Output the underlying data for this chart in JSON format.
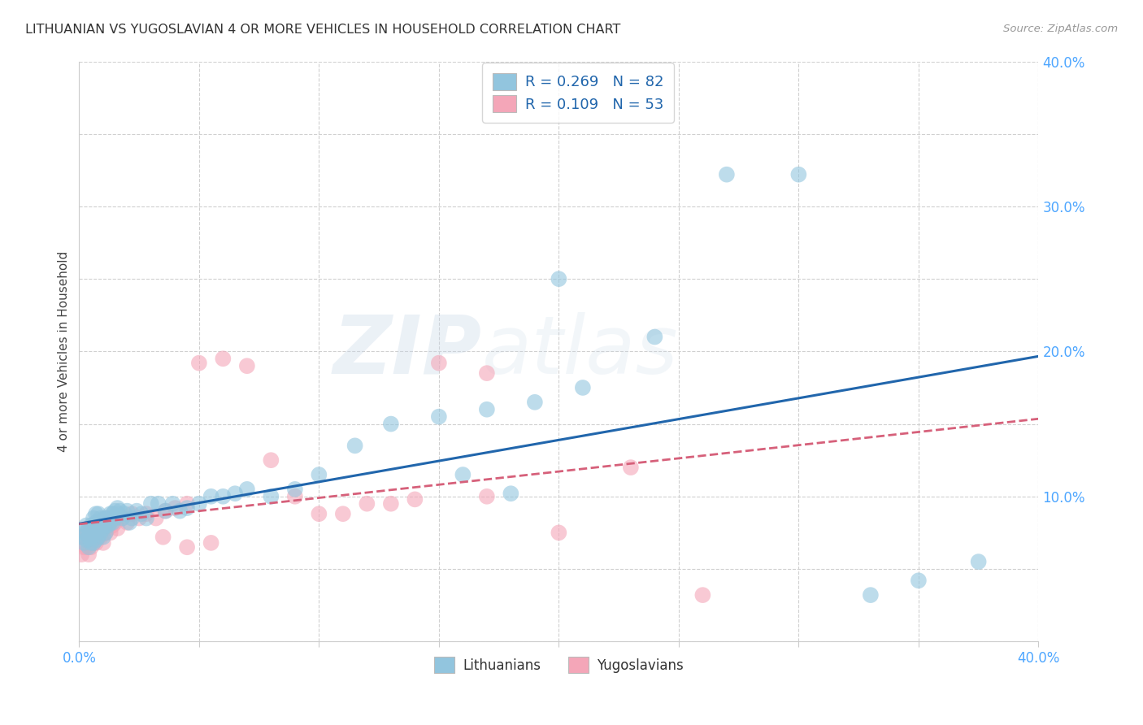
{
  "title": "LITHUANIAN VS YUGOSLAVIAN 4 OR MORE VEHICLES IN HOUSEHOLD CORRELATION CHART",
  "source": "Source: ZipAtlas.com",
  "ylabel": "4 or more Vehicles in Household",
  "xmin": 0.0,
  "xmax": 0.4,
  "ymin": 0.0,
  "ymax": 0.4,
  "legend_r_blue": "0.269",
  "legend_n_blue": "82",
  "legend_r_pink": "0.109",
  "legend_n_pink": "53",
  "legend_label_blue": "Lithuanians",
  "legend_label_pink": "Yugoslavians",
  "blue_color": "#92c5de",
  "pink_color": "#f4a6b8",
  "blue_line_color": "#2166ac",
  "pink_line_color": "#d6607a",
  "axis_label_color": "#4da6ff",
  "blue_scatter_x": [
    0.001,
    0.002,
    0.002,
    0.003,
    0.003,
    0.003,
    0.004,
    0.004,
    0.004,
    0.005,
    0.005,
    0.005,
    0.005,
    0.006,
    0.006,
    0.006,
    0.006,
    0.007,
    0.007,
    0.007,
    0.007,
    0.008,
    0.008,
    0.008,
    0.008,
    0.009,
    0.009,
    0.009,
    0.01,
    0.01,
    0.01,
    0.011,
    0.011,
    0.011,
    0.012,
    0.012,
    0.013,
    0.013,
    0.014,
    0.014,
    0.015,
    0.015,
    0.016,
    0.016,
    0.017,
    0.018,
    0.019,
    0.02,
    0.021,
    0.022,
    0.024,
    0.026,
    0.028,
    0.03,
    0.033,
    0.036,
    0.039,
    0.042,
    0.045,
    0.05,
    0.055,
    0.06,
    0.065,
    0.07,
    0.08,
    0.09,
    0.1,
    0.115,
    0.13,
    0.15,
    0.17,
    0.19,
    0.21,
    0.24,
    0.27,
    0.3,
    0.33,
    0.16,
    0.18,
    0.2,
    0.35,
    0.375
  ],
  "blue_scatter_y": [
    0.072,
    0.068,
    0.075,
    0.07,
    0.075,
    0.08,
    0.065,
    0.072,
    0.078,
    0.068,
    0.075,
    0.08,
    0.072,
    0.068,
    0.075,
    0.08,
    0.085,
    0.07,
    0.076,
    0.082,
    0.088,
    0.072,
    0.078,
    0.082,
    0.088,
    0.075,
    0.08,
    0.085,
    0.072,
    0.078,
    0.084,
    0.075,
    0.08,
    0.085,
    0.08,
    0.085,
    0.082,
    0.088,
    0.082,
    0.088,
    0.085,
    0.09,
    0.088,
    0.092,
    0.09,
    0.085,
    0.088,
    0.09,
    0.082,
    0.085,
    0.09,
    0.088,
    0.085,
    0.095,
    0.095,
    0.09,
    0.095,
    0.09,
    0.092,
    0.095,
    0.1,
    0.1,
    0.102,
    0.105,
    0.1,
    0.105,
    0.115,
    0.135,
    0.15,
    0.155,
    0.16,
    0.165,
    0.175,
    0.21,
    0.322,
    0.322,
    0.032,
    0.115,
    0.102,
    0.25,
    0.042,
    0.055
  ],
  "pink_scatter_x": [
    0.001,
    0.002,
    0.002,
    0.003,
    0.003,
    0.004,
    0.004,
    0.005,
    0.005,
    0.006,
    0.006,
    0.007,
    0.007,
    0.008,
    0.008,
    0.009,
    0.009,
    0.01,
    0.01,
    0.011,
    0.012,
    0.013,
    0.014,
    0.015,
    0.016,
    0.018,
    0.02,
    0.022,
    0.025,
    0.028,
    0.032,
    0.036,
    0.04,
    0.045,
    0.05,
    0.06,
    0.07,
    0.08,
    0.09,
    0.1,
    0.11,
    0.13,
    0.15,
    0.17,
    0.2,
    0.23,
    0.26,
    0.035,
    0.045,
    0.055,
    0.12,
    0.14,
    0.17
  ],
  "pink_scatter_y": [
    0.06,
    0.065,
    0.072,
    0.065,
    0.075,
    0.06,
    0.072,
    0.065,
    0.078,
    0.068,
    0.075,
    0.068,
    0.075,
    0.072,
    0.08,
    0.072,
    0.08,
    0.068,
    0.078,
    0.075,
    0.078,
    0.075,
    0.08,
    0.082,
    0.078,
    0.085,
    0.082,
    0.088,
    0.085,
    0.088,
    0.085,
    0.09,
    0.092,
    0.095,
    0.192,
    0.195,
    0.19,
    0.125,
    0.1,
    0.088,
    0.088,
    0.095,
    0.192,
    0.1,
    0.075,
    0.12,
    0.032,
    0.072,
    0.065,
    0.068,
    0.095,
    0.098,
    0.185
  ]
}
